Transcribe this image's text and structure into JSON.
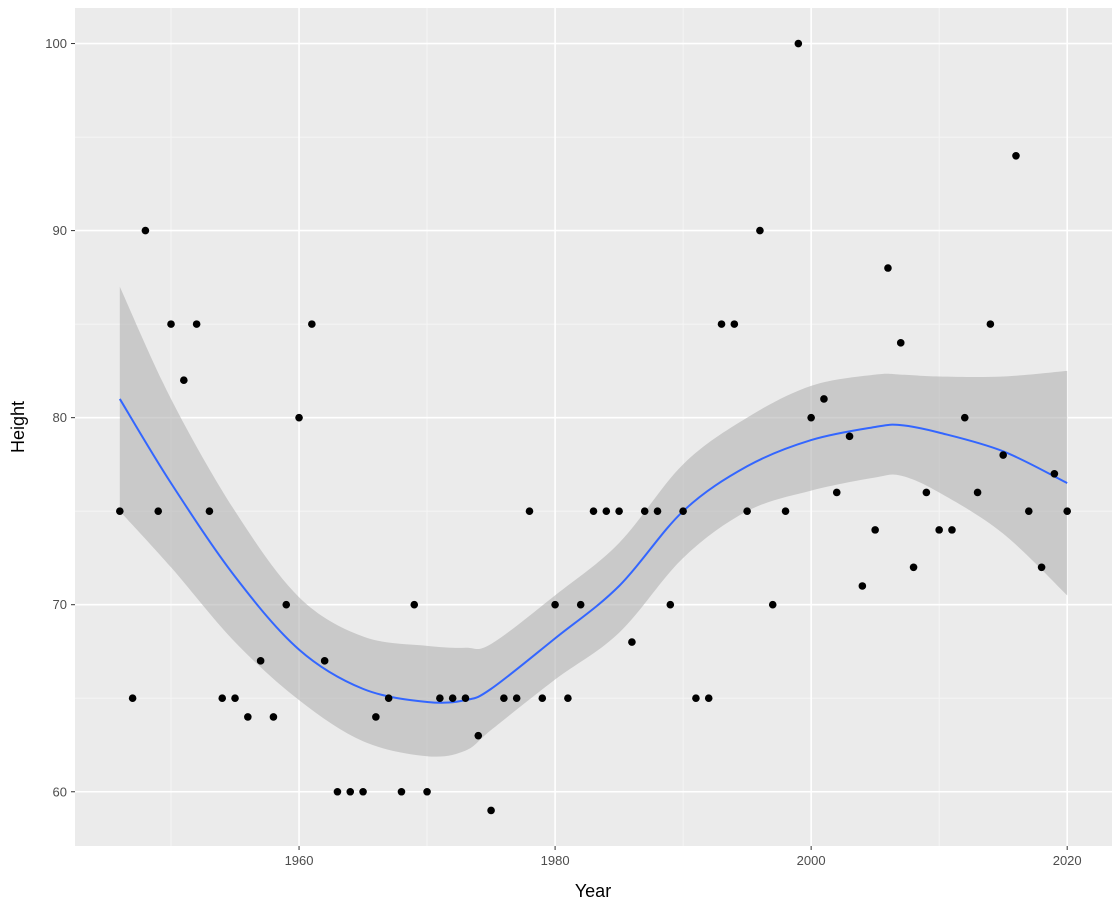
{
  "chart_data": {
    "type": "scatter",
    "xlabel": "Year",
    "ylabel": "Height",
    "xlim": [
      1942.5,
      2023.5
    ],
    "ylim": [
      57.1,
      101.9
    ],
    "x_ticks": [
      1960,
      1980,
      2000,
      2020
    ],
    "x_tick_labels": [
      "1960",
      "1980",
      "2000",
      "2020"
    ],
    "y_ticks": [
      60,
      70,
      80,
      90,
      100
    ],
    "y_tick_labels": [
      "60",
      "70",
      "80",
      "90",
      "100"
    ],
    "grid": true,
    "legend": "none",
    "colors": {
      "panel": "#ebebeb",
      "grid_major": "#ffffff",
      "grid_minor": "#f5f5f5",
      "points": "#000000",
      "smooth_line": "#3366ff",
      "confidence_band": "#b3b3b3"
    },
    "points": [
      {
        "x": 1946,
        "y": 75
      },
      {
        "x": 1947,
        "y": 65
      },
      {
        "x": 1948,
        "y": 90
      },
      {
        "x": 1949,
        "y": 75
      },
      {
        "x": 1950,
        "y": 85
      },
      {
        "x": 1951,
        "y": 82
      },
      {
        "x": 1952,
        "y": 85
      },
      {
        "x": 1953,
        "y": 75
      },
      {
        "x": 1954,
        "y": 65
      },
      {
        "x": 1955,
        "y": 65
      },
      {
        "x": 1956,
        "y": 64
      },
      {
        "x": 1957,
        "y": 67
      },
      {
        "x": 1958,
        "y": 64
      },
      {
        "x": 1959,
        "y": 70
      },
      {
        "x": 1960,
        "y": 80
      },
      {
        "x": 1961,
        "y": 85
      },
      {
        "x": 1962,
        "y": 67
      },
      {
        "x": 1963,
        "y": 60
      },
      {
        "x": 1964,
        "y": 60
      },
      {
        "x": 1965,
        "y": 60
      },
      {
        "x": 1966,
        "y": 64
      },
      {
        "x": 1967,
        "y": 65
      },
      {
        "x": 1968,
        "y": 60
      },
      {
        "x": 1969,
        "y": 70
      },
      {
        "x": 1970,
        "y": 60
      },
      {
        "x": 1971,
        "y": 65
      },
      {
        "x": 1972,
        "y": 65
      },
      {
        "x": 1973,
        "y": 65
      },
      {
        "x": 1974,
        "y": 63
      },
      {
        "x": 1975,
        "y": 59
      },
      {
        "x": 1976,
        "y": 65
      },
      {
        "x": 1977,
        "y": 65
      },
      {
        "x": 1978,
        "y": 75
      },
      {
        "x": 1979,
        "y": 65
      },
      {
        "x": 1980,
        "y": 70
      },
      {
        "x": 1981,
        "y": 65
      },
      {
        "x": 1982,
        "y": 70
      },
      {
        "x": 1983,
        "y": 75
      },
      {
        "x": 1984,
        "y": 75
      },
      {
        "x": 1985,
        "y": 75
      },
      {
        "x": 1986,
        "y": 68
      },
      {
        "x": 1987,
        "y": 75
      },
      {
        "x": 1988,
        "y": 75
      },
      {
        "x": 1989,
        "y": 70
      },
      {
        "x": 1990,
        "y": 75
      },
      {
        "x": 1991,
        "y": 65
      },
      {
        "x": 1992,
        "y": 65
      },
      {
        "x": 1993,
        "y": 85
      },
      {
        "x": 1994,
        "y": 85
      },
      {
        "x": 1995,
        "y": 75
      },
      {
        "x": 1996,
        "y": 90
      },
      {
        "x": 1997,
        "y": 70
      },
      {
        "x": 1998,
        "y": 75
      },
      {
        "x": 1999,
        "y": 100
      },
      {
        "x": 2000,
        "y": 80
      },
      {
        "x": 2001,
        "y": 81
      },
      {
        "x": 2002,
        "y": 76
      },
      {
        "x": 2003,
        "y": 79
      },
      {
        "x": 2004,
        "y": 71
      },
      {
        "x": 2005,
        "y": 74
      },
      {
        "x": 2006,
        "y": 88
      },
      {
        "x": 2007,
        "y": 84
      },
      {
        "x": 2008,
        "y": 72
      },
      {
        "x": 2009,
        "y": 76
      },
      {
        "x": 2010,
        "y": 74
      },
      {
        "x": 2011,
        "y": 74
      },
      {
        "x": 2012,
        "y": 80
      },
      {
        "x": 2013,
        "y": 76
      },
      {
        "x": 2014,
        "y": 85
      },
      {
        "x": 2015,
        "y": 78
      },
      {
        "x": 2016,
        "y": 94
      },
      {
        "x": 2017,
        "y": 75
      },
      {
        "x": 2018,
        "y": 72
      },
      {
        "x": 2019,
        "y": 77
      },
      {
        "x": 2020,
        "y": 75
      }
    ],
    "smooth": [
      {
        "x": 1946,
        "y": 81.0,
        "lo": 75.0,
        "hi": 87.0
      },
      {
        "x": 1950,
        "y": 76.5,
        "lo": 72.0,
        "hi": 81.0
      },
      {
        "x": 1955,
        "y": 71.5,
        "lo": 68.0,
        "hi": 75.0
      },
      {
        "x": 1960,
        "y": 67.6,
        "lo": 64.9,
        "hi": 70.4
      },
      {
        "x": 1965,
        "y": 65.5,
        "lo": 62.7,
        "hi": 68.3
      },
      {
        "x": 1970,
        "y": 64.8,
        "lo": 61.9,
        "hi": 67.8
      },
      {
        "x": 1973,
        "y": 64.9,
        "lo": 62.2,
        "hi": 67.7
      },
      {
        "x": 1975,
        "y": 65.5,
        "lo": 63.3,
        "hi": 67.9
      },
      {
        "x": 1980,
        "y": 68.2,
        "lo": 66.0,
        "hi": 70.5
      },
      {
        "x": 1985,
        "y": 71.0,
        "lo": 68.5,
        "hi": 73.3
      },
      {
        "x": 1990,
        "y": 75.0,
        "lo": 72.5,
        "hi": 77.5
      },
      {
        "x": 1995,
        "y": 77.4,
        "lo": 75.0,
        "hi": 80.0
      },
      {
        "x": 2000,
        "y": 78.8,
        "lo": 76.1,
        "hi": 81.7
      },
      {
        "x": 2005,
        "y": 79.5,
        "lo": 76.8,
        "hi": 82.3
      },
      {
        "x": 2007,
        "y": 79.6,
        "lo": 76.9,
        "hi": 82.3
      },
      {
        "x": 2010,
        "y": 79.2,
        "lo": 76.0,
        "hi": 82.2
      },
      {
        "x": 2015,
        "y": 78.2,
        "lo": 73.8,
        "hi": 82.2
      },
      {
        "x": 2020,
        "y": 76.5,
        "lo": 70.5,
        "hi": 82.5
      }
    ]
  }
}
